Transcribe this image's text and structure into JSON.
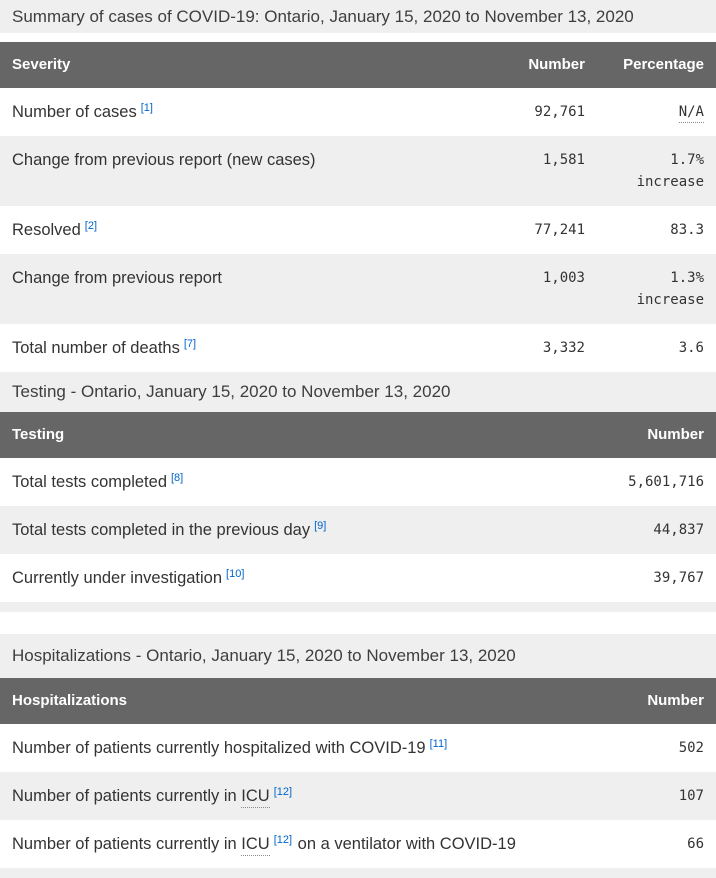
{
  "colors": {
    "header_bg": "#666666",
    "header_text": "#ffffff",
    "stripe_bg": "#efefef",
    "caption_bg": "#efefef",
    "link": "#0066cc",
    "text": "#333333"
  },
  "tables": [
    {
      "caption": "Summary of cases of COVID-19: Ontario, January 15, 2020 to November 13, 2020",
      "columns": [
        "Severity",
        "Number",
        "Percentage"
      ],
      "rows": [
        {
          "parts": [
            {
              "text": "Number of cases"
            },
            {
              "sup": "[1]"
            }
          ],
          "number": "92,761",
          "percent": {
            "value": "N/A",
            "abbr": true
          }
        },
        {
          "parts": [
            {
              "text": "Change from previous report (new cases)"
            }
          ],
          "number": "1,581",
          "percent": {
            "value": "1.7%",
            "qualifier": "increase"
          }
        },
        {
          "parts": [
            {
              "text": "Resolved"
            },
            {
              "sup": "[2]"
            }
          ],
          "number": "77,241",
          "percent": {
            "value": "83.3"
          }
        },
        {
          "parts": [
            {
              "text": "Change from previous report"
            }
          ],
          "number": "1,003",
          "percent": {
            "value": "1.3%",
            "qualifier": "increase"
          }
        },
        {
          "parts": [
            {
              "text": "Total number of deaths"
            },
            {
              "sup": "[7]"
            }
          ],
          "number": "3,332",
          "percent": {
            "value": "3.6"
          }
        }
      ]
    },
    {
      "caption": "Testing - Ontario, January 15, 2020 to November 13, 2020",
      "columns": [
        "Testing",
        "Number"
      ],
      "rows": [
        {
          "parts": [
            {
              "text": "Total tests completed"
            },
            {
              "sup": "[8]"
            }
          ],
          "number": "5,601,716"
        },
        {
          "parts": [
            {
              "text": "Total tests completed in the previous day"
            },
            {
              "sup": "[9]"
            }
          ],
          "number": "44,837"
        },
        {
          "parts": [
            {
              "text": "Currently under investigation"
            },
            {
              "sup": "[10]"
            }
          ],
          "number": "39,767"
        }
      ]
    },
    {
      "caption": "Hospitalizations - Ontario, January 15, 2020 to November 13, 2020",
      "columns": [
        "Hospitalizations",
        "Number"
      ],
      "rows": [
        {
          "parts": [
            {
              "text": "Number of patients currently hospitalized with COVID-19"
            },
            {
              "sup": "[11]"
            }
          ],
          "number": "502"
        },
        {
          "parts": [
            {
              "text": "Number of patients currently in "
            },
            {
              "abbr": "ICU"
            },
            {
              "sup": "[12]"
            }
          ],
          "number": "107"
        },
        {
          "parts": [
            {
              "text": "Number of patients currently in "
            },
            {
              "abbr": "ICU"
            },
            {
              "sup": "[12]"
            },
            {
              "text": " on a ventilator with COVID-19"
            }
          ],
          "number": "66"
        }
      ]
    }
  ]
}
